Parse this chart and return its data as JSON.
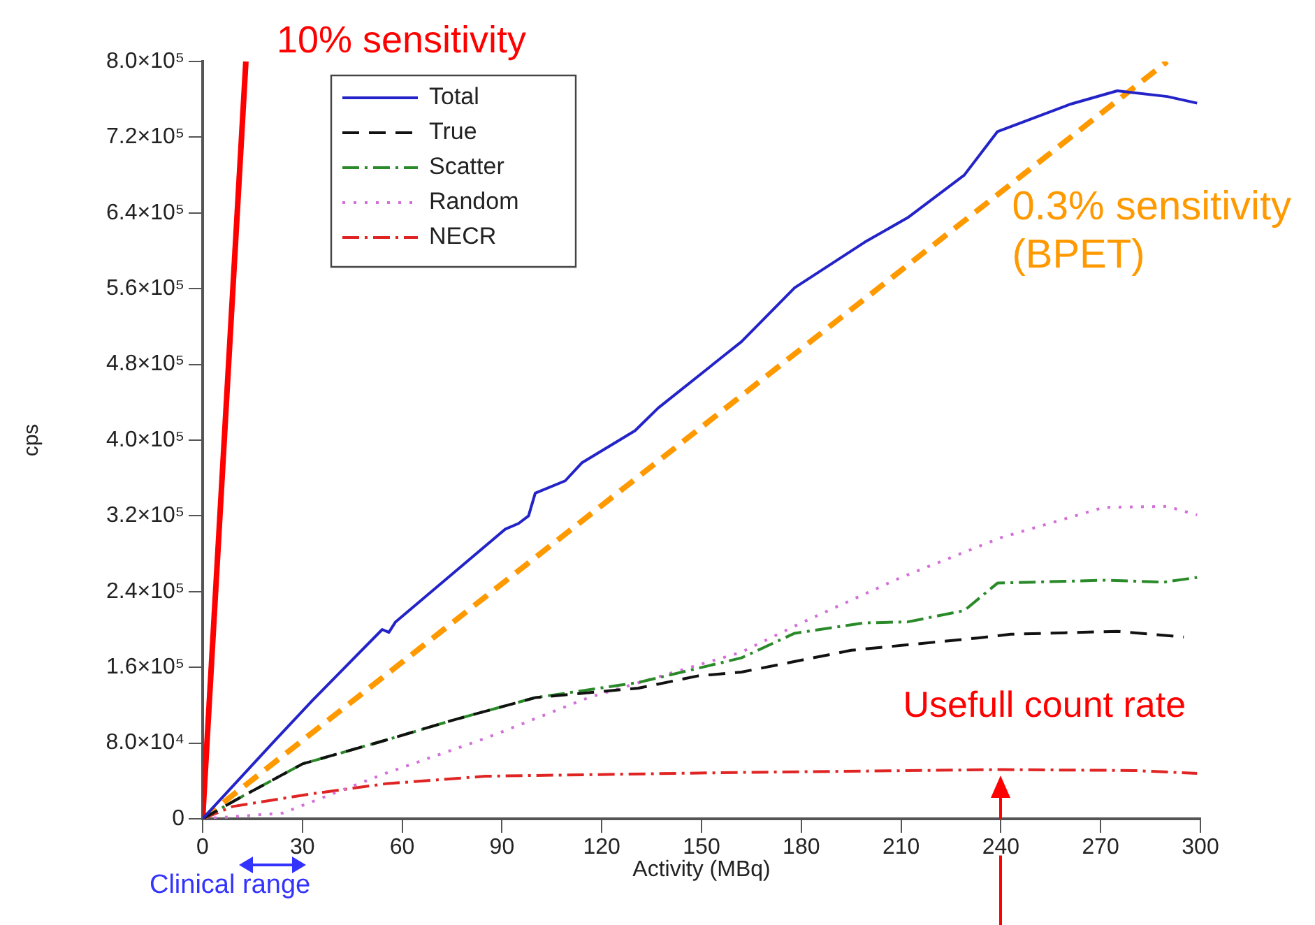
{
  "chart_data": {
    "type": "line",
    "xlabel": "Activity (MBq)",
    "ylabel": "cps",
    "xlim": [
      0,
      300
    ],
    "xticks": [
      0,
      30,
      60,
      90,
      120,
      150,
      180,
      210,
      240,
      270,
      300
    ],
    "ylim": [
      0,
      800000
    ],
    "yticks": [
      0,
      {
        "value": 80000,
        "label": "8.0×10⁴"
      },
      {
        "value": 160000,
        "label": "1.6×10⁵"
      },
      {
        "value": 240000,
        "label": "2.4×10⁵"
      },
      {
        "value": 320000,
        "label": "3.2×10⁵"
      },
      {
        "value": 400000,
        "label": "4.0×10⁵"
      },
      {
        "value": 480000,
        "label": "4.8×10⁵"
      },
      {
        "value": 560000,
        "label": "5.6×10⁵"
      },
      {
        "value": 640000,
        "label": "6.4×10⁵"
      },
      {
        "value": 720000,
        "label": "7.2×10⁵"
      },
      {
        "value": 800000,
        "label": "8.0×10⁵"
      }
    ],
    "grid": false,
    "legend": "top left",
    "marker": "none",
    "series": [
      {
        "name": "Total",
        "color": "#2323c8",
        "line_style": "solid",
        "x": [
          0,
          21,
          33,
          54,
          56,
          58,
          91,
          95,
          98,
          100,
          109,
          114,
          130,
          137,
          157,
          162,
          178,
          199,
          212,
          229,
          239,
          261,
          275,
          290,
          299
        ],
        "values": [
          0,
          80000,
          125000,
          200000,
          197000,
          208000,
          306000,
          312000,
          320000,
          344000,
          357000,
          376000,
          410000,
          434000,
          490000,
          504000,
          561000,
          609000,
          635000,
          680000,
          726000,
          755000,
          769000,
          763000,
          756000
        ]
      },
      {
        "name": "True",
        "color": "#111111",
        "line_style": "dashed",
        "x": [
          0,
          10,
          30,
          55,
          75,
          100,
          131,
          149,
          162,
          195,
          233,
          243,
          275,
          295
        ],
        "values": [
          0,
          20000,
          58000,
          83000,
          104000,
          128000,
          138000,
          151000,
          155000,
          178000,
          191000,
          195000,
          198000,
          192000
        ]
      },
      {
        "name": "Scatter",
        "color": "#2a8a2a",
        "line_style": "dashdot",
        "x": [
          0,
          10,
          30,
          55,
          75,
          100,
          131,
          162,
          178,
          199,
          212,
          229,
          239,
          271,
          289,
          299
        ],
        "values": [
          0,
          20000,
          58000,
          83000,
          104000,
          128000,
          144000,
          170000,
          196000,
          207000,
          208000,
          220000,
          249000,
          252000,
          250000,
          255000
        ]
      },
      {
        "name": "Random",
        "color": "#d36fd8",
        "line_style": "dotted",
        "x": [
          0,
          24,
          55,
          85,
          116,
          162,
          180,
          210,
          240,
          271,
          290,
          299
        ],
        "values": [
          0,
          6000,
          48000,
          85000,
          128000,
          176000,
          207000,
          255000,
          297000,
          329000,
          330000,
          321000
        ]
      },
      {
        "name": "NECR",
        "color": "#e02424",
        "line_style": "dashdot",
        "x": [
          0,
          9,
          32,
          55,
          85,
          162,
          240,
          280,
          299
        ],
        "values": [
          0,
          13000,
          26000,
          37000,
          45000,
          49000,
          52000,
          51000,
          48000
        ]
      },
      {
        "color": "#ff0000",
        "line_style": "solid",
        "x": [
          0,
          13
        ],
        "values": [
          0,
          800000
        ]
      },
      {
        "color": "#ff9900",
        "line_style": "dashed",
        "x": [
          0,
          290
        ],
        "values": [
          0,
          800000
        ]
      }
    ],
    "annotations": [
      {
        "text": "10% sensitivity",
        "x": 13,
        "y": 800000
      },
      {
        "text": "0.3% sensitivity\n(BPET)",
        "x": 240,
        "y": 660000
      },
      {
        "text": "Usefull count rate",
        "x": 240,
        "y": 52000
      },
      {
        "text": "Clinical range",
        "x": 21,
        "y": 0
      }
    ]
  }
}
